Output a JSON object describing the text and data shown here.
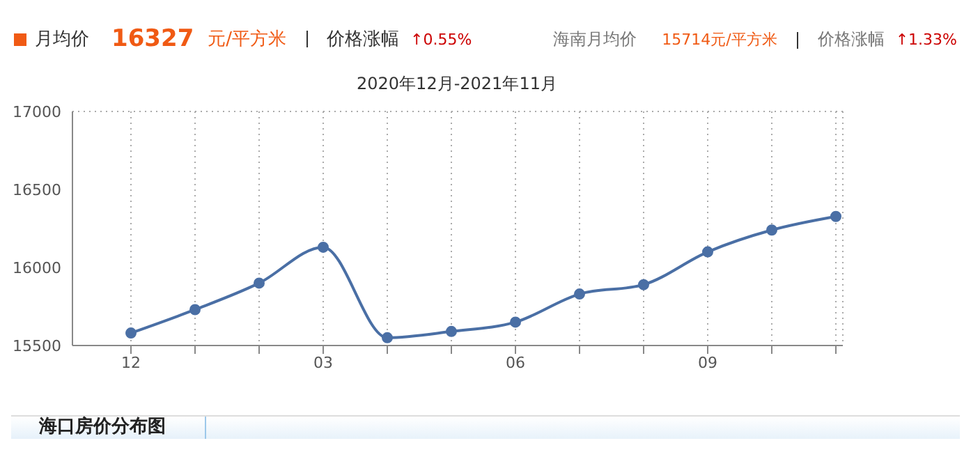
{
  "chart_data": {
    "type": "line",
    "title": "2020年12月-2021年11月",
    "categories": [
      "12",
      null,
      null,
      "03",
      null,
      null,
      "06",
      null,
      null,
      "09",
      null,
      null
    ],
    "series": [
      {
        "color": "#4a6fa5",
        "values": [
          15580,
          15730,
          15900,
          16130,
          15550,
          15590,
          15650,
          15830,
          15890,
          16100,
          16240,
          16327
        ]
      }
    ],
    "ylim": [
      15500,
      17000
    ],
    "yticks": [
      15500,
      16000,
      16500,
      17000
    ],
    "grid": true,
    "marker": "circle",
    "legend": false,
    "annotations": [
      "月均价",
      "16327",
      "元/平方米",
      "价格涨幅",
      "↑0.55%",
      "海南月均价",
      "15714元/平方米",
      "价格涨幅",
      "↑1.33%",
      "海口房价分布图"
    ]
  }
}
